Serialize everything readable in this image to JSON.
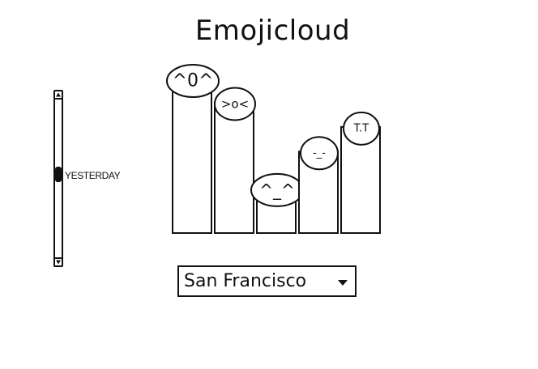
{
  "app": {
    "title": "Emojicloud"
  },
  "time_scroller": {
    "label": "YESTERDAY",
    "up_icon": "arrow-up-icon",
    "down_icon": "arrow-down-icon"
  },
  "city_select": {
    "selected": "San Francisco",
    "icon": "caret-down-icon"
  },
  "chart_data": {
    "type": "bar",
    "categories": [
      "^0^",
      ">o<",
      "^_^",
      "-_-",
      "T.T"
    ],
    "values": [
      100,
      85,
      29,
      53,
      69
    ],
    "ylim": [
      0,
      100
    ]
  }
}
